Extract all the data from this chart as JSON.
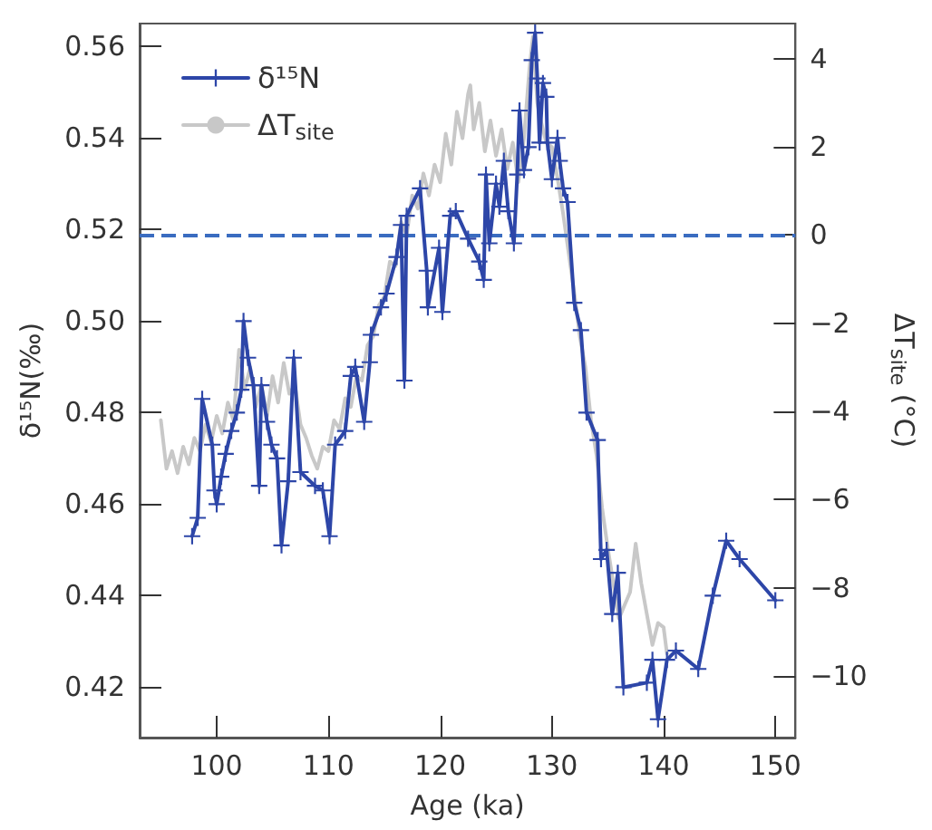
{
  "chart_data": {
    "type": "line",
    "xlabel": "Age (ka)",
    "ylabel": "δ¹⁵N(‰)",
    "y2label": "ΔT$_{site}$ (°C)",
    "xlim": [
      93.1,
      151.8
    ],
    "xticks": [
      100,
      110,
      120,
      130,
      140,
      150
    ],
    "ylim": [
      0.409,
      0.565
    ],
    "yticks": [
      0.42,
      0.44,
      0.46,
      0.48,
      {
        "value": 0.5,
        "label": "0.50"
      },
      0.52,
      0.54,
      0.56
    ],
    "y2lim": [
      -11.4,
      4.8
    ],
    "y2ticks": [
      {
        "value": -10,
        "label": "−10"
      },
      {
        "value": -8,
        "label": "−8"
      },
      {
        "value": -6,
        "label": "−6"
      },
      {
        "value": -4,
        "label": "−4"
      },
      {
        "value": -2,
        "label": "−2"
      },
      0,
      2,
      4
    ],
    "grid": false,
    "legend": "top left",
    "ref_lines": [
      {
        "axis": "y2",
        "value": 0,
        "color": "#3a6cc0",
        "line_style": "dashed"
      }
    ],
    "series": [
      {
        "name": "δ¹⁵N",
        "color": "#2d46a8",
        "marker": "cross",
        "line_style": "solid",
        "x": [
          97.8,
          98.3,
          98.7,
          99.6,
          99.8,
          100.0,
          100.4,
          100.8,
          101.3,
          101.8,
          102.2,
          102.4,
          102.8,
          103.3,
          103.8,
          104.0,
          104.5,
          104.9,
          105.4,
          105.8,
          106.4,
          106.9,
          107.5,
          108.8,
          109.5,
          110.1,
          110.6,
          111.5,
          112.0,
          112.4,
          113.2,
          113.7,
          113.8,
          114.7,
          115.2,
          116.1,
          116.5,
          116.8,
          117.0,
          118.2,
          118.8,
          118.9,
          119.9,
          120.2,
          120.9,
          121.4,
          122.5,
          123.5,
          123.9,
          124.1,
          124.4,
          125.0,
          125.3,
          125.7,
          126.1,
          126.6,
          126.9,
          127.1,
          127.5,
          127.9,
          128.2,
          128.5,
          128.7,
          128.9,
          129.2,
          129.5,
          129.6,
          130.0,
          130.5,
          130.7,
          131.0,
          131.4,
          132.0,
          132.6,
          133.1,
          134.1,
          134.4,
          134.9,
          135.4,
          135.9,
          136.4,
          138.5,
          139.0,
          139.5,
          140.3,
          141.1,
          143.1,
          144.4,
          145.6,
          146.8,
          150.0
        ],
        "values": [
          0.453,
          0.457,
          0.483,
          0.473,
          0.463,
          0.46,
          0.466,
          0.471,
          0.476,
          0.48,
          0.485,
          0.5,
          0.492,
          0.486,
          0.464,
          0.486,
          0.478,
          0.473,
          0.47,
          0.451,
          0.465,
          0.492,
          0.467,
          0.464,
          0.463,
          0.453,
          0.473,
          0.476,
          0.488,
          0.49,
          0.478,
          0.491,
          0.497,
          0.503,
          0.506,
          0.514,
          0.521,
          0.487,
          0.523,
          0.529,
          0.511,
          0.503,
          0.516,
          0.502,
          0.523,
          0.524,
          0.518,
          0.513,
          0.509,
          0.532,
          0.517,
          0.53,
          0.525,
          0.535,
          0.524,
          0.517,
          0.532,
          0.546,
          0.533,
          0.538,
          0.557,
          0.563,
          0.553,
          0.539,
          0.552,
          0.549,
          0.539,
          0.531,
          0.54,
          0.535,
          0.529,
          0.526,
          0.504,
          0.498,
          0.48,
          0.474,
          0.448,
          0.45,
          0.436,
          0.445,
          0.42,
          0.421,
          0.426,
          0.413,
          0.426,
          0.428,
          0.424,
          0.44,
          0.452,
          0.448,
          0.439
        ]
      },
      {
        "name": "ΔT$_{site}$",
        "color": "#c8c8c8",
        "axis": "y2",
        "marker": "none",
        "line_style": "solid",
        "x": [
          95.0,
          95.5,
          96.0,
          96.5,
          97.0,
          97.5,
          98.0,
          98.5,
          99.0,
          99.5,
          100.0,
          100.5,
          101.0,
          101.5,
          102.0,
          102.5,
          103.0,
          103.5,
          104.0,
          104.5,
          105.0,
          105.5,
          106.0,
          106.5,
          107.0,
          107.5,
          108.0,
          108.5,
          109.0,
          109.5,
          110.0,
          110.5,
          111.0,
          111.5,
          112.0,
          112.5,
          113.0,
          113.5,
          114.0,
          114.5,
          115.0,
          115.5,
          116.0,
          116.5,
          117.0,
          117.5,
          118.0,
          118.5,
          119.0,
          119.5,
          120.0,
          120.5,
          121.0,
          121.5,
          122.0,
          122.5,
          122.7,
          123.0,
          123.5,
          124.0,
          124.5,
          125.0,
          125.5,
          126.0,
          126.5,
          127.0,
          127.5,
          128.0,
          128.3,
          128.7,
          129.0,
          129.5,
          130.0,
          130.5,
          131.0,
          131.5,
          132.0,
          132.5,
          133.0,
          133.5,
          134.0,
          134.5,
          135.0,
          135.5,
          136.0,
          136.5,
          137.0,
          137.5,
          138.0,
          138.5,
          139.0,
          139.5,
          140.0,
          140.3
        ],
        "values": [
          -4.2,
          -5.3,
          -4.9,
          -5.4,
          -4.8,
          -5.2,
          -4.6,
          -4.9,
          -4.3,
          -4.7,
          -4.1,
          -4.5,
          -3.8,
          -4.2,
          -2.6,
          -3.5,
          -3.0,
          -3.9,
          -3.4,
          -4.1,
          -3.2,
          -3.8,
          -2.9,
          -3.6,
          -3.4,
          -4.3,
          -4.6,
          -5.0,
          -5.3,
          -4.8,
          -4.9,
          -4.2,
          -4.4,
          -3.7,
          -3.9,
          -3.2,
          -3.3,
          -2.5,
          -2.3,
          -1.6,
          -1.4,
          -0.6,
          -0.7,
          0.3,
          0.0,
          0.9,
          0.6,
          1.4,
          0.9,
          1.6,
          1.2,
          2.3,
          1.6,
          2.8,
          2.2,
          3.2,
          3.4,
          2.4,
          3.0,
          1.9,
          2.6,
          1.8,
          2.4,
          1.5,
          2.1,
          1.2,
          2.2,
          3.8,
          4.5,
          3.0,
          2.6,
          2.1,
          2.0,
          1.3,
          0.5,
          -0.4,
          -1.3,
          -2.3,
          -3.0,
          -4.2,
          -5.0,
          -6.2,
          -7.1,
          -7.9,
          -8.7,
          -8.4,
          -8.1,
          -7.0,
          -7.9,
          -8.6,
          -9.3,
          -8.8,
          -8.9,
          -9.5
        ]
      }
    ]
  }
}
